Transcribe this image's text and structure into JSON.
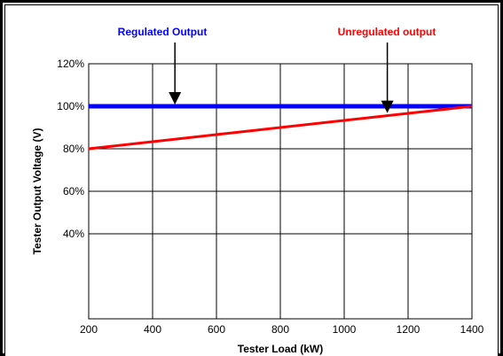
{
  "chart_data": {
    "type": "line",
    "xlabel": "Tester Load (kW)",
    "ylabel": "Tester Output Voltage (V)",
    "xlim": [
      200,
      1400
    ],
    "ylim": [
      0,
      120
    ],
    "x_ticks": [
      "200",
      "400",
      "600",
      "800",
      "1000",
      "1200",
      "1400"
    ],
    "y_ticks": [
      "40%",
      "60%",
      "80%",
      "100%",
      "120%"
    ],
    "grid": true,
    "series": [
      {
        "name": "Regulated Output",
        "color": "#0000ff",
        "x": [
          200,
          1400
        ],
        "y": [
          100,
          100
        ]
      },
      {
        "name": "Unregulated output",
        "color": "#ff0000",
        "x": [
          200,
          1400
        ],
        "y": [
          80,
          100
        ]
      }
    ],
    "annotations": [
      {
        "text": "Regulated Output",
        "color": "#0000ff",
        "points_to": {
          "x": 470,
          "y": 100
        }
      },
      {
        "text": "Unregulated output",
        "color": "#ff0000",
        "points_to": {
          "x": 1135,
          "y": 96
        }
      }
    ]
  }
}
